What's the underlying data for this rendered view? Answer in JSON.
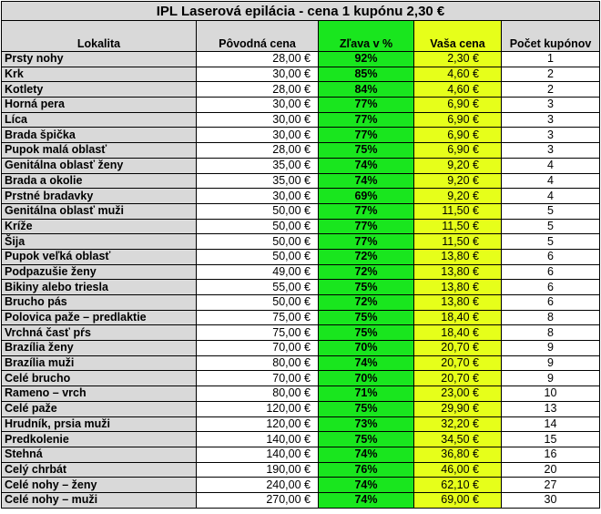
{
  "title": "IPL Laserová epilácia - cena 1 kupónu 2,30 €",
  "headers": {
    "location": "Lokalita",
    "original_price": "Pôvodná cena",
    "discount": "Zľava v %",
    "your_price": "Vaša cena",
    "coupons": "Počet kupónov"
  },
  "colors": {
    "header_gray": "#d9d9d9",
    "discount_green": "#19e61e",
    "price_yellow": "#e6ff1a"
  },
  "rows": [
    {
      "location": "Prsty nohy",
      "original": "28,00 €",
      "discount": "92%",
      "price": "2,30 €",
      "coupons": "1"
    },
    {
      "location": "Krk",
      "original": "30,00 €",
      "discount": "85%",
      "price": "4,60 €",
      "coupons": "2"
    },
    {
      "location": "Kotlety",
      "original": "28,00 €",
      "discount": "84%",
      "price": "4,60 €",
      "coupons": "2"
    },
    {
      "location": "Horná pera",
      "original": "30,00 €",
      "discount": "77%",
      "price": "6,90 €",
      "coupons": "3"
    },
    {
      "location": "Líca",
      "original": "30,00 €",
      "discount": "77%",
      "price": "6,90 €",
      "coupons": "3"
    },
    {
      "location": "Brada špička",
      "original": "30,00 €",
      "discount": "77%",
      "price": "6,90 €",
      "coupons": "3"
    },
    {
      "location": "Pupok malá oblasť",
      "original": "28,00 €",
      "discount": "75%",
      "price": "6,90 €",
      "coupons": "3"
    },
    {
      "location": "Genitálna oblasť ženy",
      "original": "35,00 €",
      "discount": "74%",
      "price": "9,20 €",
      "coupons": "4"
    },
    {
      "location": "Brada a okolie",
      "original": "35,00 €",
      "discount": "74%",
      "price": "9,20 €",
      "coupons": "4"
    },
    {
      "location": "Prstné bradavky",
      "original": "30,00 €",
      "discount": "69%",
      "price": "9,20 €",
      "coupons": "4"
    },
    {
      "location": "Genitálna oblasť muži",
      "original": "50,00 €",
      "discount": "77%",
      "price": "11,50 €",
      "coupons": "5"
    },
    {
      "location": "Kríže",
      "original": "50,00 €",
      "discount": "77%",
      "price": "11,50 €",
      "coupons": "5"
    },
    {
      "location": "Šija",
      "original": "50,00 €",
      "discount": "77%",
      "price": "11,50 €",
      "coupons": "5"
    },
    {
      "location": "Pupok veľká oblasť",
      "original": "50,00 €",
      "discount": "72%",
      "price": "13,80 €",
      "coupons": "6"
    },
    {
      "location": "Podpazušie ženy",
      "original": "49,00 €",
      "discount": "72%",
      "price": "13,80 €",
      "coupons": "6"
    },
    {
      "location": "Bikiny alebo triesla",
      "original": "55,00 €",
      "discount": "75%",
      "price": "13,80 €",
      "coupons": "6"
    },
    {
      "location": "Brucho pás",
      "original": "50,00 €",
      "discount": "72%",
      "price": "13,80 €",
      "coupons": "6"
    },
    {
      "location": "Polovica paže – predlaktie",
      "original": "75,00 €",
      "discount": "75%",
      "price": "18,40 €",
      "coupons": "8"
    },
    {
      "location": "Vrchná časť pŕs",
      "original": "75,00 €",
      "discount": "75%",
      "price": "18,40 €",
      "coupons": "8"
    },
    {
      "location": "Brazília ženy",
      "original": "70,00 €",
      "discount": "70%",
      "price": "20,70 €",
      "coupons": "9"
    },
    {
      "location": "Brazília muži",
      "original": "80,00 €",
      "discount": "74%",
      "price": "20,70 €",
      "coupons": "9"
    },
    {
      "location": "Celé brucho",
      "original": "70,00 €",
      "discount": "70%",
      "price": "20,70 €",
      "coupons": "9"
    },
    {
      "location": "Rameno – vrch",
      "original": "80,00 €",
      "discount": "71%",
      "price": "23,00 €",
      "coupons": "10"
    },
    {
      "location": "Celé paže",
      "original": "120,00 €",
      "discount": "75%",
      "price": "29,90 €",
      "coupons": "13"
    },
    {
      "location": "Hrudník, prsia muži",
      "original": "120,00 €",
      "discount": "73%",
      "price": "32,20 €",
      "coupons": "14"
    },
    {
      "location": "Predkolenie",
      "original": "140,00 €",
      "discount": "75%",
      "price": "34,50 €",
      "coupons": "15"
    },
    {
      "location": "Stehná",
      "original": "140,00 €",
      "discount": "74%",
      "price": "36,80 €",
      "coupons": "16"
    },
    {
      "location": "Celý chrbát",
      "original": "190,00 €",
      "discount": "76%",
      "price": "46,00 €",
      "coupons": "20"
    },
    {
      "location": "Celé nohy – ženy",
      "original": "240,00 €",
      "discount": "74%",
      "price": "62,10 €",
      "coupons": "27"
    },
    {
      "location": "Celé nohy – muži",
      "original": "270,00 €",
      "discount": "74%",
      "price": "69,00 €",
      "coupons": "30"
    }
  ]
}
